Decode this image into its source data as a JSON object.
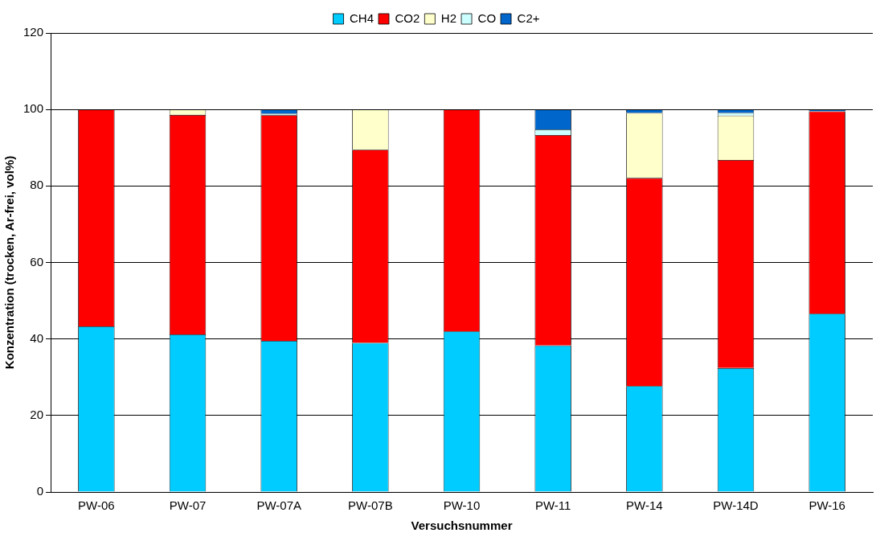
{
  "chart_data": {
    "type": "bar",
    "stacked": true,
    "xlabel": "Versuchsnummer",
    "ylabel": "Konzentration (trocken, Ar-frei, vol%)",
    "categories": [
      "PW-06",
      "PW-07",
      "PW-07A",
      "PW-07B",
      "PW-10",
      "PW-11",
      "PW-14",
      "PW-14D",
      "PW-16"
    ],
    "series": [
      {
        "name": "CH4",
        "color": "#00ccff",
        "values": [
          43.3,
          41.2,
          39.5,
          39.0,
          42.0,
          38.3,
          27.7,
          32.4,
          46.6
        ]
      },
      {
        "name": "CO2",
        "color": "#ff0000",
        "values": [
          56.7,
          57.4,
          59.0,
          50.5,
          58.0,
          55.0,
          54.4,
          54.4,
          52.9
        ]
      },
      {
        "name": "H2",
        "color": "#ffffcc",
        "values": [
          null,
          1.4,
          null,
          10.5,
          null,
          null,
          17.0,
          11.6,
          null
        ]
      },
      {
        "name": "CO",
        "color": "#ccffff",
        "values": [
          null,
          null,
          0.4,
          null,
          null,
          1.5,
          null,
          0.7,
          null
        ]
      },
      {
        "name": "C2+",
        "color": "#0066cc",
        "values": [
          null,
          null,
          1.1,
          null,
          null,
          5.2,
          0.9,
          0.9,
          0.5
        ]
      }
    ],
    "ylim": [
      0,
      120
    ],
    "yticks": [
      0,
      20,
      40,
      60,
      80,
      100,
      120
    ],
    "grid": "y",
    "legend": "top"
  }
}
